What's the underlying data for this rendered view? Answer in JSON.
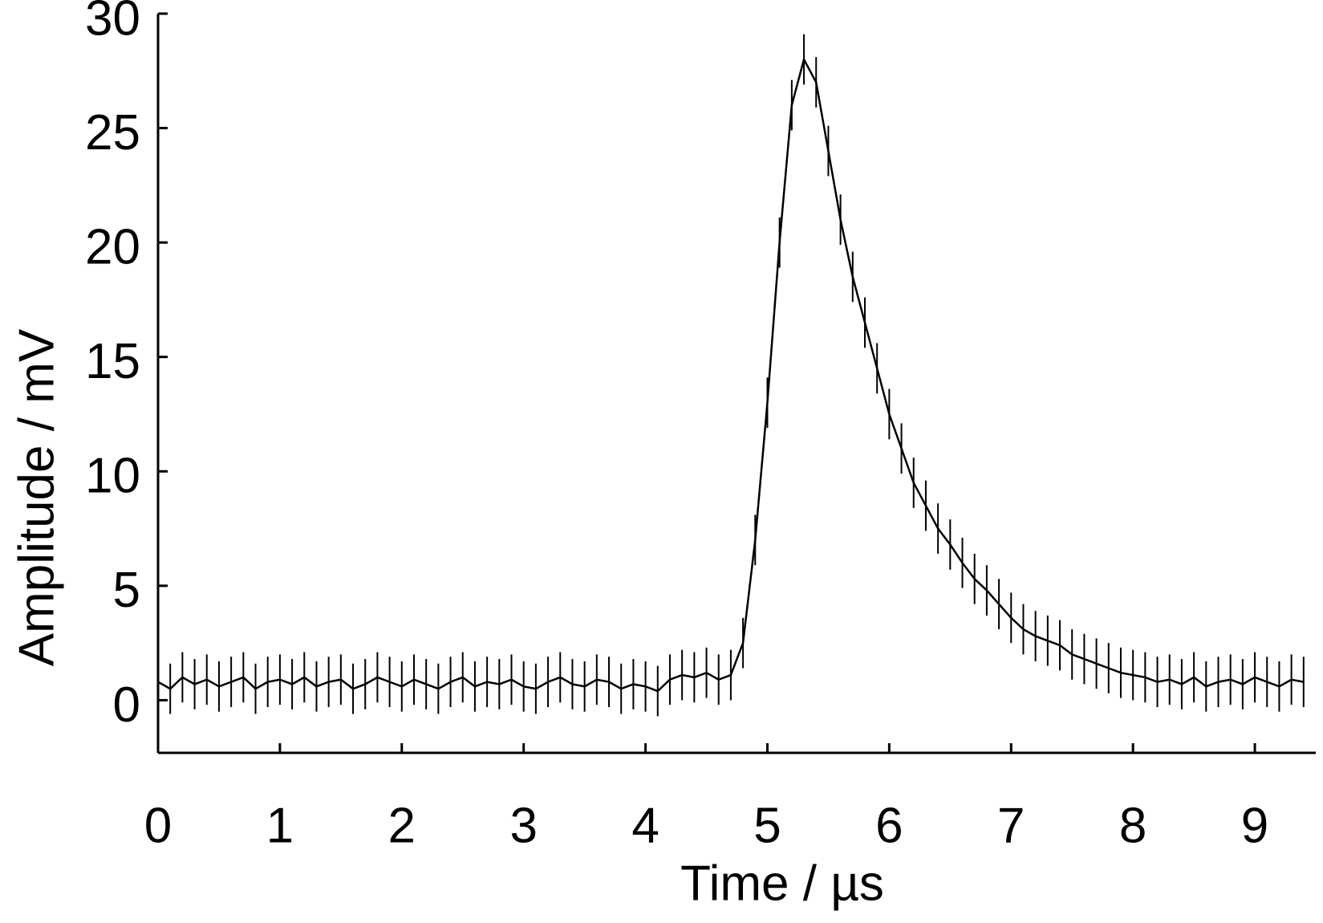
{
  "chart_data": {
    "type": "line",
    "xlabel": "Time / µs",
    "ylabel": "Amplitude / mV",
    "x": [
      0,
      0.1,
      0.2,
      0.3,
      0.4,
      0.5,
      0.6,
      0.7,
      0.8,
      0.9,
      1.0,
      1.1,
      1.2,
      1.3,
      1.4,
      1.5,
      1.6,
      1.7,
      1.8,
      1.9,
      2.0,
      2.1,
      2.2,
      2.3,
      2.4,
      2.5,
      2.6,
      2.7,
      2.8,
      2.9,
      3.0,
      3.1,
      3.2,
      3.3,
      3.4,
      3.5,
      3.6,
      3.7,
      3.8,
      3.9,
      4.0,
      4.1,
      4.2,
      4.3,
      4.4,
      4.5,
      4.6,
      4.7,
      4.8,
      4.9,
      5.0,
      5.1,
      5.2,
      5.3,
      5.4,
      5.5,
      5.6,
      5.7,
      5.8,
      5.9,
      6.0,
      6.1,
      6.2,
      6.3,
      6.4,
      6.5,
      6.6,
      6.7,
      6.8,
      6.9,
      7.0,
      7.1,
      7.2,
      7.3,
      7.4,
      7.5,
      7.6,
      7.7,
      7.8,
      7.9,
      8.0,
      8.1,
      8.2,
      8.3,
      8.4,
      8.5,
      8.6,
      8.7,
      8.8,
      8.9,
      9.0,
      9.1,
      9.2,
      9.3,
      9.4
    ],
    "values": [
      0.8,
      0.5,
      1.0,
      0.7,
      0.9,
      0.6,
      0.8,
      1.0,
      0.5,
      0.8,
      0.9,
      0.7,
      1.0,
      0.6,
      0.8,
      0.9,
      0.5,
      0.7,
      1.0,
      0.8,
      0.6,
      0.9,
      0.7,
      0.5,
      0.8,
      1.0,
      0.6,
      0.8,
      0.7,
      0.9,
      0.6,
      0.5,
      0.8,
      1.0,
      0.7,
      0.6,
      0.9,
      0.8,
      0.5,
      0.7,
      0.6,
      0.4,
      0.9,
      1.1,
      1.0,
      1.2,
      0.9,
      1.1,
      2.5,
      7,
      13,
      20,
      26,
      28,
      27,
      24,
      21,
      18.5,
      16.5,
      14.5,
      12.5,
      11,
      9.5,
      8.5,
      7.5,
      6.8,
      6,
      5.3,
      4.8,
      4.2,
      3.6,
      3.1,
      2.8,
      2.6,
      2.4,
      2.0,
      1.8,
      1.6,
      1.4,
      1.2,
      1.1,
      1.0,
      0.8,
      0.9,
      0.7,
      1.0,
      0.6,
      0.8,
      0.9,
      0.7,
      1.0,
      0.8,
      0.6,
      0.9,
      0.8
    ],
    "error": 1.1,
    "color": "#000000",
    "xlim": [
      0,
      9.5
    ],
    "ylim": [
      -2.3,
      30
    ],
    "xticks": [
      0,
      1,
      2,
      3,
      4,
      5,
      6,
      7,
      8,
      9
    ],
    "yticks": [
      0,
      5,
      10,
      15,
      20,
      25,
      30
    ]
  }
}
